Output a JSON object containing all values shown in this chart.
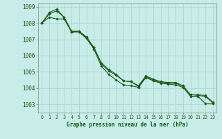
{
  "background_color": "#c8ece8",
  "grid_color": "#b0d8d4",
  "line_color": "#1a5c1a",
  "title": "Graphe pression niveau de la mer (hPa)",
  "hours": [
    0,
    1,
    2,
    3,
    4,
    5,
    6,
    7,
    8,
    9,
    10,
    11,
    12,
    13,
    14,
    15,
    16,
    17,
    18,
    19,
    20,
    21,
    22,
    23
  ],
  "ylim": [
    1002.5,
    1009.2
  ],
  "yticks": [
    1003,
    1004,
    1005,
    1006,
    1007,
    1008,
    1009
  ],
  "series1": [
    1008.0,
    1008.55,
    1008.75,
    1008.35,
    1007.45,
    1007.45,
    1007.05,
    1006.4,
    1005.35,
    1004.85,
    1004.5,
    1004.2,
    1004.15,
    1004.05,
    1004.65,
    1004.45,
    1004.3,
    1004.25,
    1004.2,
    1004.05,
    1003.5,
    1003.5,
    1003.05,
    1003.05
  ],
  "series2": [
    1008.0,
    1008.35,
    1008.25,
    1008.25,
    1007.45,
    1007.5,
    1007.15,
    1006.5,
    1005.5,
    1005.05,
    1004.8,
    1004.45,
    1004.4,
    1004.1,
    1004.7,
    1004.5,
    1004.35,
    1004.3,
    1004.3,
    1004.12,
    1003.6,
    1003.55,
    1003.5,
    1003.1
  ],
  "series3": [
    1008.0,
    1008.65,
    1008.85,
    1008.35,
    1007.5,
    1007.5,
    1007.1,
    1006.5,
    1005.55,
    1005.15,
    1004.85,
    1004.45,
    1004.4,
    1004.15,
    1004.75,
    1004.55,
    1004.4,
    1004.35,
    1004.35,
    1004.15,
    1003.6,
    1003.6,
    1003.55,
    1003.15
  ]
}
